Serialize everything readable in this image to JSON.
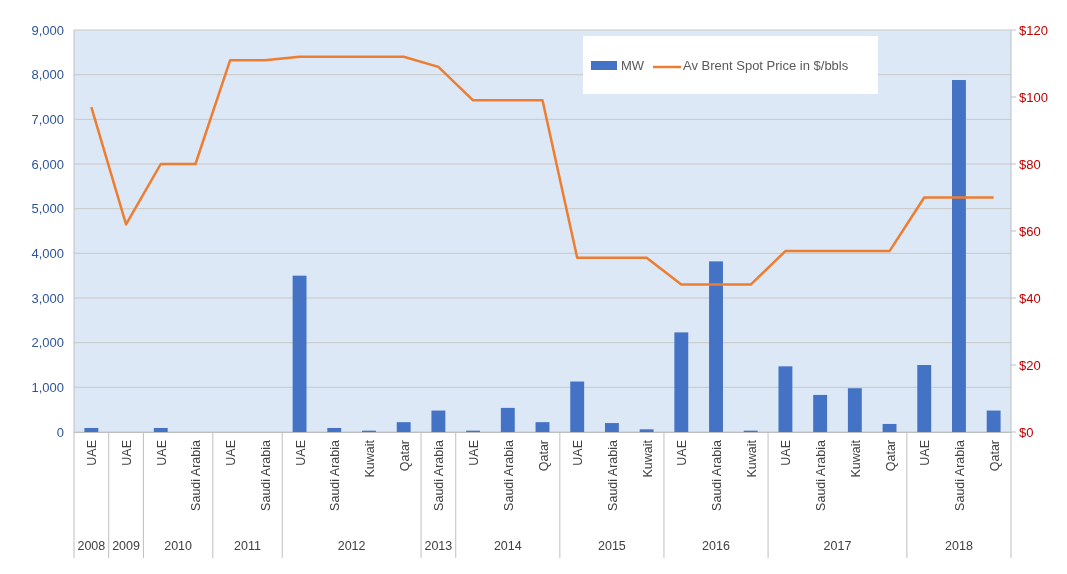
{
  "chart_data": {
    "type": "bar",
    "categories": [
      "UAE",
      "UAE",
      "UAE",
      "Saudi Arabia",
      "UAE",
      "Saudi Arabia",
      "UAE",
      "Saudi Arabia",
      "Kuwait",
      "Qatar",
      "Saudi Arabia",
      "UAE",
      "Saudi Arabia",
      "Qatar",
      "UAE",
      "Saudi Arabia",
      "Kuwait",
      "UAE",
      "Saudi Arabia",
      "Kuwait",
      "UAE",
      "Saudi Arabia",
      "Kuwait",
      "Qatar",
      "UAE",
      "Saudi Arabia",
      "Qatar"
    ],
    "series": [
      {
        "name": "MW",
        "color": "#4472c4",
        "values": [
          90,
          0,
          90,
          0,
          0,
          0,
          3500,
          90,
          30,
          220,
          480,
          30,
          540,
          220,
          1130,
          200,
          60,
          2230,
          3820,
          30,
          1470,
          830,
          980,
          180,
          1500,
          7880,
          480
        ]
      },
      {
        "name": "Av Brent Spot Price in $/bbls",
        "type": "line",
        "axis": "y2",
        "color": "#ed7d31",
        "values": [
          97,
          62,
          80,
          80,
          111,
          111,
          112,
          112,
          112,
          112,
          109,
          99,
          99,
          99,
          52,
          52,
          52,
          44,
          44,
          44,
          54,
          54,
          54,
          54,
          70,
          70,
          70
        ]
      }
    ],
    "annotations": [
      "2008",
      "2009",
      "2010",
      "2011",
      "2012",
      "2013",
      "2014",
      "2015",
      "2016",
      "2017",
      "2018"
    ],
    "ylim": [
      0,
      9000
    ],
    "yticks": [
      {
        "value": 0,
        "label": "0"
      },
      {
        "value": 1000,
        "label": "1,000"
      },
      {
        "value": 2000,
        "label": "2,000"
      },
      {
        "value": 3000,
        "label": "3,000"
      },
      {
        "value": 4000,
        "label": "4,000"
      },
      {
        "value": 5000,
        "label": "5,000"
      },
      {
        "value": 6000,
        "label": "6,000"
      },
      {
        "value": 7000,
        "label": "7,000"
      },
      {
        "value": 8000,
        "label": "8,000"
      },
      {
        "value": 9000,
        "label": "9,000"
      }
    ],
    "y2lim": [
      0,
      120
    ],
    "y2ticks": [
      {
        "value": 0,
        "label": "$0"
      },
      {
        "value": 20,
        "label": "$20"
      },
      {
        "value": 40,
        "label": "$40"
      },
      {
        "value": 60,
        "label": "$60"
      },
      {
        "value": 80,
        "label": "$80"
      },
      {
        "value": 100,
        "label": "$100"
      },
      {
        "value": 120,
        "label": "$120"
      }
    ],
    "grid": "y",
    "legend": "top right"
  }
}
